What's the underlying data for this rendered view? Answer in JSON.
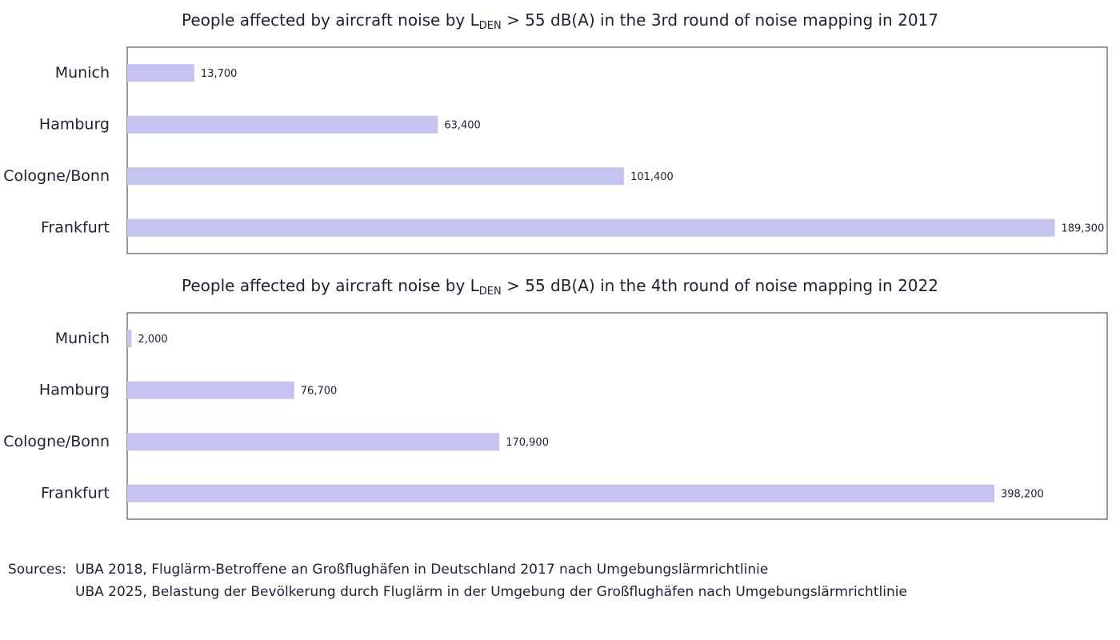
{
  "chart_data": [
    {
      "type": "bar",
      "orientation": "horizontal",
      "title": [
        "People affected by aircraft noise by L",
        "DEN",
        " > 55 dB(A) in the 3rd round of noise mapping in 2017"
      ],
      "categories": [
        "Munich",
        "Hamburg",
        "Cologne/Bonn",
        "Frankfurt"
      ],
      "values": [
        13700,
        63400,
        101400,
        189300
      ],
      "value_labels": [
        "13,700",
        "63,400",
        "101,400",
        "189,300"
      ],
      "color": "#c5c3f0",
      "xlim": [
        0,
        200000
      ]
    },
    {
      "type": "bar",
      "orientation": "horizontal",
      "title": [
        "People affected by aircraft noise by L",
        "DEN",
        " > 55 dB(A) in the 4th round of noise mapping in 2022"
      ],
      "categories": [
        "Munich",
        "Hamburg",
        "Cologne/Bonn",
        "Frankfurt"
      ],
      "values": [
        2000,
        76700,
        170900,
        398200
      ],
      "value_labels": [
        "2,000",
        "76,700",
        "170,900",
        "398,200"
      ],
      "color": "#c5c3f0",
      "xlim": [
        0,
        450000
      ]
    }
  ],
  "sources": {
    "label": "Sources:",
    "lines": [
      "UBA 2018, Fluglärm-Betroffene an Großflughäfen in Deutschland 2017 nach Umgebungslärmrichtlinie",
      "UBA 2025, Belastung der Bevölkerung durch Fluglärm in der Umgebung der Großflughäfen nach Umgebungslärmrichtlinie"
    ]
  }
}
